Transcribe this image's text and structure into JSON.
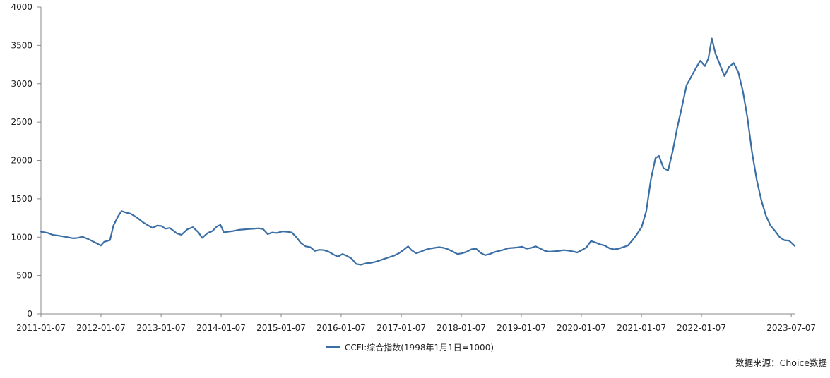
{
  "chart_data": {
    "type": "line",
    "title": "",
    "xlabel": "",
    "ylabel": "",
    "ylim": [
      0,
      4000
    ],
    "yticks": [
      0,
      500,
      1000,
      1500,
      2000,
      2500,
      3000,
      3500,
      4000
    ],
    "xlim": [
      "2011-01-07",
      "2023-07-28"
    ],
    "xticks": [
      "2011-01-07",
      "2012-01-07",
      "2013-01-07",
      "2014-01-07",
      "2015-01-07",
      "2016-01-07",
      "2017-01-07",
      "2018-01-07",
      "2019-01-07",
      "2020-01-07",
      "2021-01-07",
      "2022-01-07",
      "2023-07-07"
    ],
    "grid": false,
    "legend_position": "bottom-center",
    "series": [
      {
        "name": "CCFI:综合指数(1998年1月1日=1000)",
        "color": "#3a6ea5",
        "points": [
          [
            "2011-01-07",
            1070
          ],
          [
            "2011-02-18",
            1055
          ],
          [
            "2011-03-18",
            1030
          ],
          [
            "2011-04-22",
            1020
          ],
          [
            "2011-05-20",
            1010
          ],
          [
            "2011-06-17",
            1000
          ],
          [
            "2011-07-22",
            985
          ],
          [
            "2011-08-19",
            990
          ],
          [
            "2011-09-16",
            1005
          ],
          [
            "2011-10-21",
            975
          ],
          [
            "2011-11-18",
            945
          ],
          [
            "2011-12-16",
            915
          ],
          [
            "2012-01-06",
            890
          ],
          [
            "2012-01-27",
            940
          ],
          [
            "2012-03-02",
            960
          ],
          [
            "2012-03-23",
            1150
          ],
          [
            "2012-04-20",
            1270
          ],
          [
            "2012-05-11",
            1340
          ],
          [
            "2012-06-08",
            1320
          ],
          [
            "2012-07-06",
            1305
          ],
          [
            "2012-08-17",
            1250
          ],
          [
            "2012-09-21",
            1190
          ],
          [
            "2012-10-19",
            1155
          ],
          [
            "2012-11-16",
            1120
          ],
          [
            "2012-12-14",
            1150
          ],
          [
            "2013-01-11",
            1145
          ],
          [
            "2013-02-01",
            1110
          ],
          [
            "2013-03-01",
            1120
          ],
          [
            "2013-04-12",
            1050
          ],
          [
            "2013-05-10",
            1030
          ],
          [
            "2013-06-14",
            1100
          ],
          [
            "2013-07-19",
            1130
          ],
          [
            "2013-08-23",
            1060
          ],
          [
            "2013-09-13",
            990
          ],
          [
            "2013-10-18",
            1055
          ],
          [
            "2013-11-15",
            1080
          ],
          [
            "2013-12-13",
            1140
          ],
          [
            "2014-01-03",
            1160
          ],
          [
            "2014-01-24",
            1060
          ],
          [
            "2014-02-14",
            1070
          ],
          [
            "2014-03-21",
            1080
          ],
          [
            "2014-04-25",
            1095
          ],
          [
            "2014-05-23",
            1100
          ],
          [
            "2014-06-20",
            1105
          ],
          [
            "2014-07-25",
            1110
          ],
          [
            "2014-08-22",
            1115
          ],
          [
            "2014-09-19",
            1105
          ],
          [
            "2014-10-17",
            1040
          ],
          [
            "2014-11-14",
            1060
          ],
          [
            "2014-12-12",
            1055
          ],
          [
            "2015-01-16",
            1075
          ],
          [
            "2015-02-13",
            1070
          ],
          [
            "2015-03-13",
            1060
          ],
          [
            "2015-04-10",
            1000
          ],
          [
            "2015-05-08",
            920
          ],
          [
            "2015-06-05",
            880
          ],
          [
            "2015-07-03",
            870
          ],
          [
            "2015-07-31",
            820
          ],
          [
            "2015-08-28",
            835
          ],
          [
            "2015-09-25",
            830
          ],
          [
            "2015-10-23",
            810
          ],
          [
            "2015-11-20",
            775
          ],
          [
            "2015-12-18",
            745
          ],
          [
            "2016-01-15",
            780
          ],
          [
            "2016-02-12",
            755
          ],
          [
            "2016-03-11",
            720
          ],
          [
            "2016-04-08",
            650
          ],
          [
            "2016-05-06",
            640
          ],
          [
            "2016-06-10",
            660
          ],
          [
            "2016-07-08",
            665
          ],
          [
            "2016-08-05",
            680
          ],
          [
            "2016-09-02",
            700
          ],
          [
            "2016-09-30",
            720
          ],
          [
            "2016-10-28",
            740
          ],
          [
            "2016-11-25",
            760
          ],
          [
            "2016-12-23",
            790
          ],
          [
            "2017-01-20",
            830
          ],
          [
            "2017-02-17",
            880
          ],
          [
            "2017-03-10",
            830
          ],
          [
            "2017-04-07",
            790
          ],
          [
            "2017-05-05",
            810
          ],
          [
            "2017-06-02",
            835
          ],
          [
            "2017-06-30",
            850
          ],
          [
            "2017-07-28",
            860
          ],
          [
            "2017-08-25",
            870
          ],
          [
            "2017-09-22",
            860
          ],
          [
            "2017-10-20",
            840
          ],
          [
            "2017-11-17",
            810
          ],
          [
            "2017-12-15",
            780
          ],
          [
            "2018-01-12",
            790
          ],
          [
            "2018-02-09",
            810
          ],
          [
            "2018-03-09",
            840
          ],
          [
            "2018-04-06",
            850
          ],
          [
            "2018-05-04",
            795
          ],
          [
            "2018-06-01",
            765
          ],
          [
            "2018-06-29",
            780
          ],
          [
            "2018-07-27",
            805
          ],
          [
            "2018-08-24",
            820
          ],
          [
            "2018-09-21",
            835
          ],
          [
            "2018-10-19",
            855
          ],
          [
            "2018-11-16",
            860
          ],
          [
            "2018-12-14",
            865
          ],
          [
            "2019-01-11",
            875
          ],
          [
            "2019-02-08",
            850
          ],
          [
            "2019-03-08",
            860
          ],
          [
            "2019-04-05",
            880
          ],
          [
            "2019-05-03",
            850
          ],
          [
            "2019-05-31",
            820
          ],
          [
            "2019-06-28",
            810
          ],
          [
            "2019-07-26",
            815
          ],
          [
            "2019-08-23",
            820
          ],
          [
            "2019-09-20",
            830
          ],
          [
            "2019-10-18",
            825
          ],
          [
            "2019-11-15",
            815
          ],
          [
            "2019-12-13",
            800
          ],
          [
            "2020-01-10",
            830
          ],
          [
            "2020-02-07",
            865
          ],
          [
            "2020-03-06",
            950
          ],
          [
            "2020-04-03",
            930
          ],
          [
            "2020-05-01",
            905
          ],
          [
            "2020-05-29",
            890
          ],
          [
            "2020-06-26",
            855
          ],
          [
            "2020-07-24",
            840
          ],
          [
            "2020-08-21",
            850
          ],
          [
            "2020-09-18",
            870
          ],
          [
            "2020-10-16",
            890
          ],
          [
            "2020-11-13",
            960
          ],
          [
            "2020-12-11",
            1040
          ],
          [
            "2021-01-08",
            1130
          ],
          [
            "2021-02-05",
            1340
          ],
          [
            "2021-03-05",
            1750
          ],
          [
            "2021-04-02",
            2030
          ],
          [
            "2021-04-23",
            2060
          ],
          [
            "2021-05-21",
            1900
          ],
          [
            "2021-06-18",
            1870
          ],
          [
            "2021-07-16",
            2120
          ],
          [
            "2021-08-13",
            2430
          ],
          [
            "2021-09-10",
            2700
          ],
          [
            "2021-10-08",
            2980
          ],
          [
            "2021-11-05",
            3090
          ],
          [
            "2021-12-03",
            3200
          ],
          [
            "2021-12-31",
            3300
          ],
          [
            "2022-01-28",
            3230
          ],
          [
            "2022-02-18",
            3330
          ],
          [
            "2022-03-11",
            3590
          ],
          [
            "2022-04-01",
            3400
          ],
          [
            "2022-04-29",
            3250
          ],
          [
            "2022-05-27",
            3100
          ],
          [
            "2022-06-24",
            3220
          ],
          [
            "2022-07-22",
            3270
          ],
          [
            "2022-08-19",
            3150
          ],
          [
            "2022-09-16",
            2900
          ],
          [
            "2022-10-14",
            2550
          ],
          [
            "2022-11-11",
            2100
          ],
          [
            "2022-12-09",
            1750
          ],
          [
            "2023-01-06",
            1480
          ],
          [
            "2023-02-03",
            1280
          ],
          [
            "2023-03-03",
            1150
          ],
          [
            "2023-03-31",
            1080
          ],
          [
            "2023-04-28",
            1000
          ],
          [
            "2023-05-26",
            960
          ],
          [
            "2023-06-23",
            955
          ],
          [
            "2023-07-21",
            900
          ],
          [
            "2023-07-28",
            885
          ]
        ]
      }
    ]
  },
  "legend": {
    "label": "CCFI:综合指数(1998年1月1日=1000)",
    "color": "#3a6ea5"
  },
  "source": "数据来源：Choice数据"
}
